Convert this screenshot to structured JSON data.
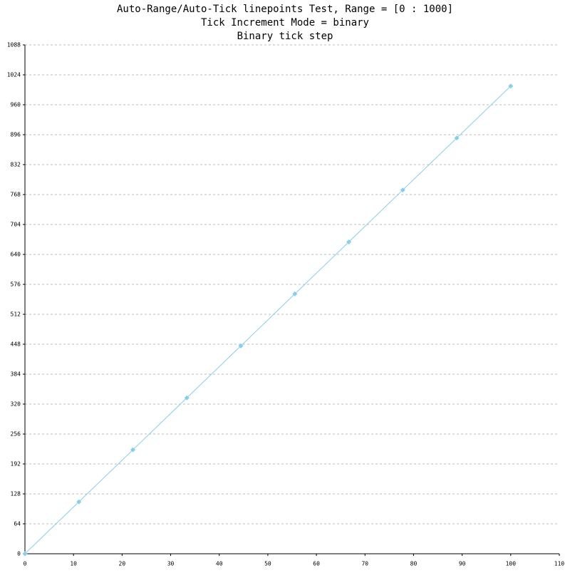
{
  "chart_data": {
    "type": "line",
    "title_lines": [
      "Auto-Range/Auto-Tick linepoints Test, Range = [0 : 1000]",
      "Tick Increment Mode = binary",
      "Binary tick step"
    ],
    "series": [
      {
        "color": "#87ceeb",
        "x": [
          0,
          11.11,
          22.22,
          33.33,
          44.44,
          55.56,
          66.67,
          77.78,
          88.89,
          100
        ],
        "values": [
          0,
          111.1,
          222.2,
          333.3,
          444.4,
          555.6,
          666.7,
          777.8,
          888.9,
          1000
        ]
      }
    ],
    "xlim": [
      0,
      110
    ],
    "xticks": [
      0,
      10,
      20,
      30,
      40,
      50,
      60,
      70,
      80,
      90,
      100,
      110
    ],
    "ylim": [
      0,
      1088
    ],
    "yticks": [
      0,
      64,
      128,
      192,
      256,
      320,
      384,
      448,
      512,
      576,
      640,
      704,
      768,
      832,
      896,
      960,
      1024,
      1088
    ],
    "grid": true,
    "markers": true
  }
}
